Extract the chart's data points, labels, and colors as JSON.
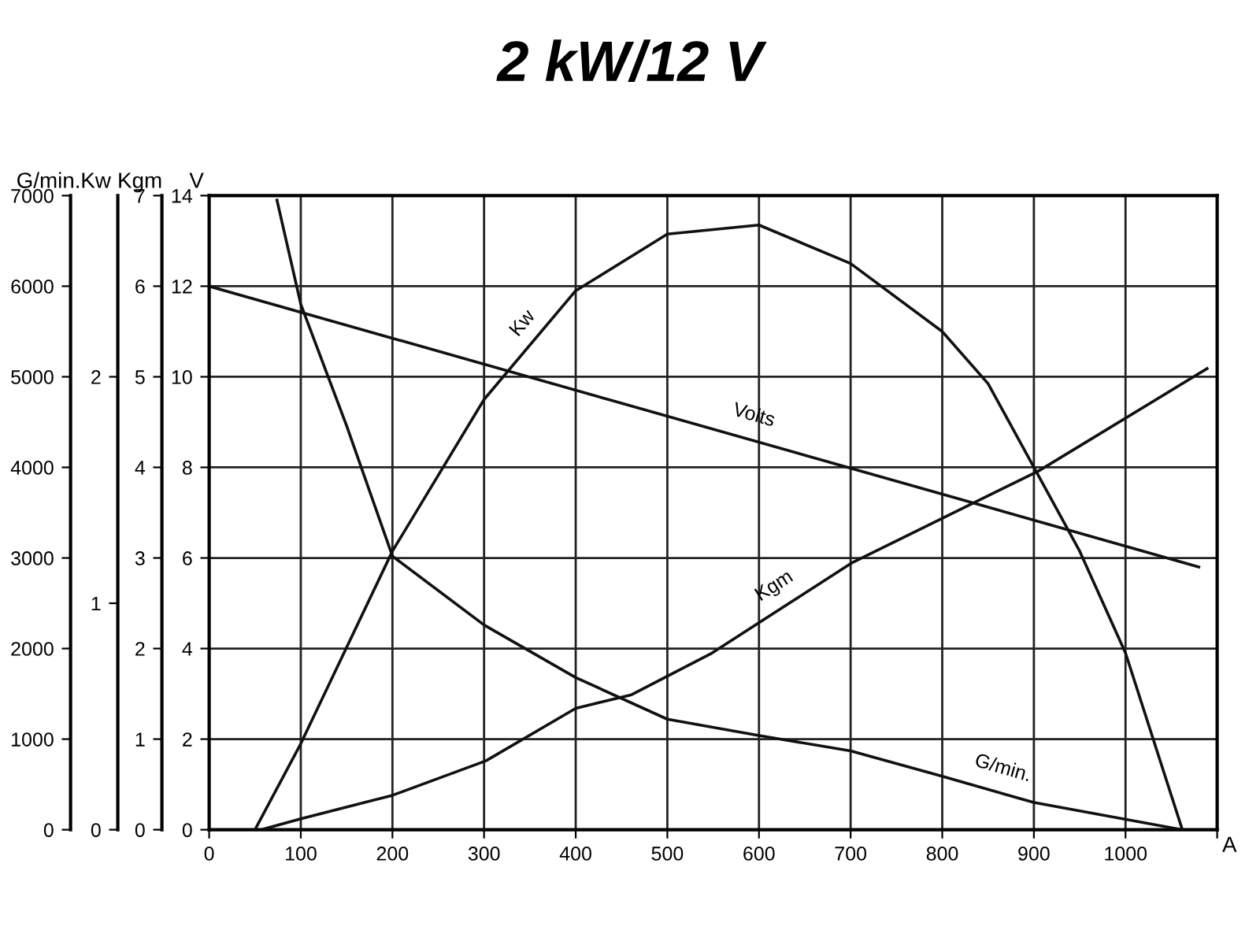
{
  "chart_data": [
    {
      "type": "line",
      "title": "2 kW/12 V",
      "xlabel": "A",
      "ylabel": "V",
      "y2label": "Kgm",
      "y3label": "Kw",
      "xlim": [
        0,
        1100
      ],
      "xticks": [
        0,
        100,
        200,
        300,
        400,
        500,
        600,
        700,
        800,
        900,
        1000,
        {
          "value": 1100,
          "label": null
        }
      ],
      "ylim": [
        0,
        14
      ],
      "yticks": [
        0,
        2,
        4,
        6,
        8,
        10,
        12,
        14
      ],
      "y2lim": [
        0,
        7
      ],
      "y2ticks": [
        0,
        1,
        2,
        3,
        4,
        5,
        6,
        7
      ],
      "y3lim": [
        0,
        2.8
      ],
      "y3ticks": [
        0,
        1,
        2
      ],
      "grid": true,
      "legend": false,
      "marker": "none",
      "line_style": "solid",
      "series": [
        {
          "name": "Kw",
          "color": "#111111",
          "axis": "y3",
          "x": [
            50,
            100,
            200,
            300,
            400,
            500,
            600,
            700,
            800,
            850,
            900,
            950,
            1000,
            1062
          ],
          "values": [
            0,
            0.38,
            1.23,
            1.9,
            2.38,
            2.63,
            2.67,
            2.5,
            2.2,
            1.97,
            1.6,
            1.23,
            0.78,
            0
          ]
        },
        {
          "name": "Volts",
          "color": "#111111",
          "x": [
            0,
            1080
          ],
          "values": [
            12,
            5.8
          ]
        },
        {
          "name": "Kgm",
          "color": "#111111",
          "axis": "y2",
          "x": [
            57,
            100,
            200,
            302,
            400,
            461,
            547,
            702,
            905,
            1089
          ],
          "values": [
            0,
            0.12,
            0.38,
            0.76,
            1.34,
            1.49,
            1.94,
            2.95,
            3.96,
            5.09
          ]
        }
      ]
    },
    {
      "type": "line",
      "ylabel": "G/min.",
      "tick_labels": "y",
      "xlim": [
        0,
        1100
      ],
      "ylim": [
        0,
        7000
      ],
      "yticks": [
        0,
        1000,
        2000,
        3000,
        4000,
        5000,
        6000,
        7000
      ],
      "marker": "none",
      "line_style": "solid",
      "series": [
        {
          "name": "G/min.",
          "color": "#111111",
          "x": [
            74,
            100,
            150,
            200,
            300,
            400,
            500,
            600,
            700,
            800,
            900,
            1062
          ],
          "values": [
            6950,
            5800,
            4460,
            3020,
            2260,
            1680,
            1220,
            1040,
            870,
            590,
            300,
            0
          ]
        }
      ]
    }
  ]
}
